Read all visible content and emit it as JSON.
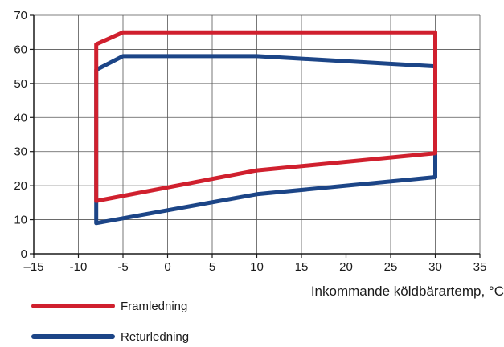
{
  "chart_data": {
    "type": "line",
    "title": "",
    "xlabel": "Inkommande köldbärartemp, °C",
    "ylabel": "",
    "xlim": [
      -15,
      35
    ],
    "ylim": [
      0,
      70
    ],
    "x_ticks": [
      -15,
      -10,
      -5,
      0,
      5,
      10,
      15,
      20,
      25,
      30,
      35
    ],
    "x_tick_labels": [
      "–15",
      "-10",
      "-5",
      "0",
      "5",
      "10",
      "15",
      "20",
      "25",
      "30",
      "35"
    ],
    "y_ticks": [
      0,
      10,
      20,
      30,
      40,
      50,
      60,
      70
    ],
    "y_tick_labels": [
      "0",
      "10",
      "20",
      "30",
      "40",
      "50",
      "60",
      "70"
    ],
    "grid": true,
    "legend_position": "bottom-left",
    "series": [
      {
        "name": "Returledning",
        "color": "#1c4587",
        "points": [
          [
            -8,
            9
          ],
          [
            10,
            17.5
          ],
          [
            30,
            22.5
          ],
          [
            30,
            55
          ],
          [
            10,
            58
          ],
          [
            -5,
            58
          ],
          [
            -8,
            54
          ],
          [
            -8,
            9
          ]
        ]
      },
      {
        "name": "Framledning",
        "color": "#d0202e",
        "points": [
          [
            -8,
            15.5
          ],
          [
            10,
            24.5
          ],
          [
            30,
            29.5
          ],
          [
            30,
            65
          ],
          [
            -5,
            65
          ],
          [
            -8,
            61.5
          ],
          [
            -8,
            15.5
          ]
        ]
      }
    ],
    "legend_order": [
      "Framledning",
      "Returledning"
    ]
  }
}
